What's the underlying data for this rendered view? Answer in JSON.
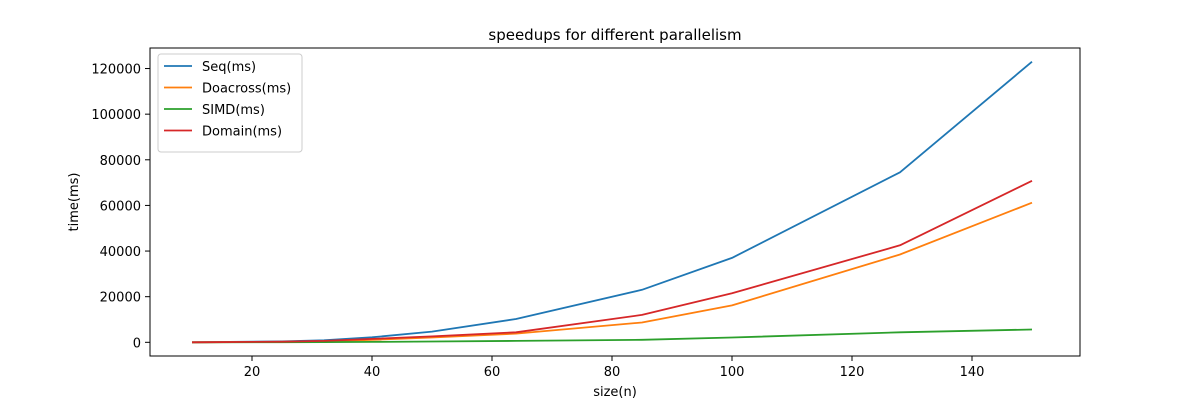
{
  "chart_data": {
    "type": "line",
    "title": "speedups for different parallelism",
    "xlabel": "size(n)",
    "ylabel": "time(ms)",
    "xlim": [
      3,
      158
    ],
    "ylim": [
      -6000,
      129000
    ],
    "xticks": [
      20,
      40,
      60,
      80,
      100,
      120,
      140
    ],
    "yticks": [
      0,
      20000,
      40000,
      60000,
      80000,
      100000,
      120000
    ],
    "grid": false,
    "legend_position": "upper-left",
    "x": [
      10,
      25,
      32,
      40,
      50,
      64,
      85,
      100,
      128,
      150
    ],
    "series": [
      {
        "name": "Seq(ms)",
        "color": "#1f77b4",
        "values": [
          10,
          400,
          900,
          2200,
          4700,
          10200,
          23000,
          37000,
          74500,
          123000
        ]
      },
      {
        "name": "Doacross(ms)",
        "color": "#ff7f0e",
        "values": [
          5,
          200,
          450,
          1100,
          2100,
          3800,
          8700,
          16200,
          38500,
          61200
        ]
      },
      {
        "name": "SIMD(ms)",
        "color": "#2ca02c",
        "values": [
          2,
          40,
          100,
          200,
          350,
          600,
          1100,
          2100,
          4400,
          5600
        ]
      },
      {
        "name": "Domain(ms)",
        "color": "#d62728",
        "values": [
          5,
          250,
          600,
          1500,
          2600,
          4400,
          12000,
          21500,
          42500,
          70800
        ]
      }
    ]
  }
}
